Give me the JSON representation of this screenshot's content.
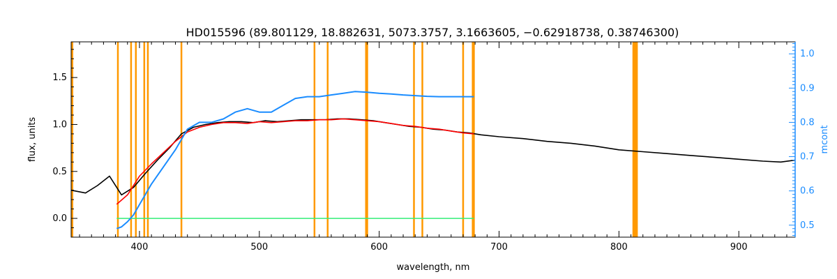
{
  "chart_data": {
    "type": "line",
    "title": "HD015596    (89.801129, 18.882631, 5073.3757, 3.1663605, −0.62918738, 0.38746300)",
    "xlabel": "wavelength, nm",
    "ylabel": "flux, units",
    "ylabel_right": "mcont",
    "xlim": [
      343,
      947
    ],
    "ylim": [
      -0.2,
      1.88
    ],
    "ylim_right": [
      0.465,
      1.035
    ],
    "x_ticks": [
      400,
      500,
      600,
      700,
      800,
      900
    ],
    "y_ticks": [
      "0.0",
      "0.5",
      "1.0",
      "1.5"
    ],
    "y_ticks_right": [
      "0.5",
      "0.6",
      "0.7",
      "0.8",
      "0.9",
      "1.0"
    ],
    "grid": false,
    "colors": {
      "observed": "#000000",
      "model": "#ff0000",
      "residual": "#33ee77",
      "continuum": "#1a8cff",
      "masks": "#ff9900"
    },
    "mask_lines": [
      344,
      382,
      393,
      397,
      404,
      407,
      435,
      546,
      557,
      589,
      590,
      629,
      636,
      670,
      678,
      679,
      812,
      813,
      814,
      815
    ],
    "series": [
      {
        "key": "observed",
        "x": [
          343,
          355,
          365,
          375,
          385,
          395,
          405,
          415,
          425,
          435,
          445,
          455,
          465,
          475,
          485,
          495,
          505,
          515,
          525,
          535,
          545,
          555,
          565,
          575,
          585,
          595,
          605,
          615,
          625,
          635,
          645,
          655,
          665,
          675,
          685,
          700,
          720,
          740,
          760,
          780,
          800,
          820,
          840,
          860,
          880,
          900,
          920,
          935,
          947
        ],
        "y": [
          0.3,
          0.27,
          0.35,
          0.45,
          0.25,
          0.33,
          0.48,
          0.62,
          0.75,
          0.9,
          0.97,
          1.0,
          1.02,
          1.03,
          1.03,
          1.02,
          1.04,
          1.03,
          1.04,
          1.05,
          1.05,
          1.05,
          1.06,
          1.06,
          1.05,
          1.04,
          1.02,
          1.0,
          0.98,
          0.97,
          0.95,
          0.94,
          0.92,
          0.91,
          0.89,
          0.87,
          0.85,
          0.82,
          0.8,
          0.77,
          0.73,
          0.71,
          0.69,
          0.67,
          0.65,
          0.63,
          0.61,
          0.6,
          0.62
        ]
      },
      {
        "key": "model",
        "x": [
          381,
          390,
          400,
          410,
          420,
          430,
          440,
          450,
          460,
          470,
          480,
          490,
          500,
          510,
          520,
          530,
          540,
          550,
          560,
          570,
          580,
          590,
          600,
          610,
          620,
          630,
          640,
          650,
          660,
          670,
          679
        ],
        "y": [
          0.15,
          0.25,
          0.45,
          0.58,
          0.7,
          0.82,
          0.92,
          0.97,
          1.0,
          1.02,
          1.02,
          1.01,
          1.03,
          1.02,
          1.03,
          1.04,
          1.04,
          1.05,
          1.05,
          1.06,
          1.05,
          1.04,
          1.03,
          1.01,
          0.99,
          0.98,
          0.96,
          0.95,
          0.93,
          0.91,
          0.9
        ]
      },
      {
        "key": "residual",
        "x": [
          381,
          679
        ],
        "y": [
          0.0,
          0.0
        ]
      },
      {
        "key": "continuum",
        "axis": "right",
        "x": [
          381,
          385,
          390,
          395,
          400,
          410,
          420,
          430,
          440,
          450,
          460,
          470,
          480,
          490,
          500,
          510,
          520,
          530,
          540,
          550,
          560,
          570,
          580,
          590,
          600,
          610,
          620,
          630,
          640,
          650,
          660,
          670,
          679
        ],
        "y": [
          0.49,
          0.495,
          0.51,
          0.53,
          0.56,
          0.62,
          0.67,
          0.72,
          0.78,
          0.8,
          0.8,
          0.81,
          0.83,
          0.84,
          0.83,
          0.83,
          0.85,
          0.87,
          0.875,
          0.875,
          0.88,
          0.885,
          0.89,
          0.888,
          0.885,
          0.883,
          0.88,
          0.878,
          0.876,
          0.875,
          0.875,
          0.875,
          0.875
        ]
      }
    ]
  }
}
